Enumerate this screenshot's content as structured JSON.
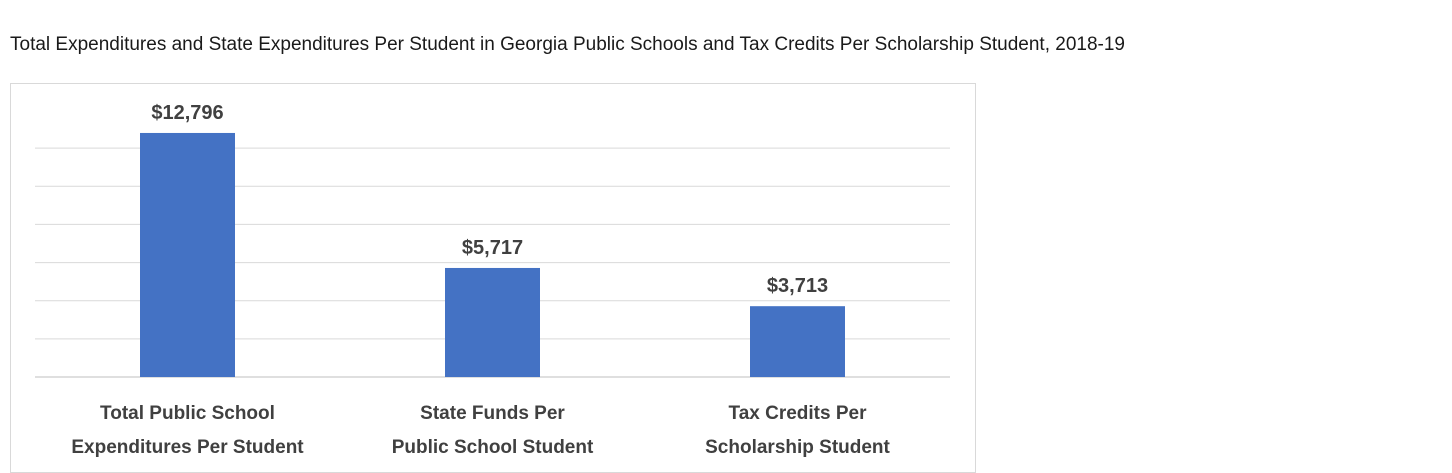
{
  "chart_data": {
    "type": "bar",
    "title": "Total Expenditures and State Expenditures Per Student in Georgia Public Schools and Tax Credits Per Scholarship Student, 2018-19",
    "categories": [
      [
        "Total Public School",
        "Expenditures Per Student"
      ],
      [
        "State Funds Per",
        "Public School Student"
      ],
      [
        "Tax Credits Per",
        "Scholarship Student"
      ]
    ],
    "values": [
      12796,
      5717,
      3713
    ],
    "value_labels": [
      "$12,796",
      "$5,717",
      "$3,713"
    ],
    "ylim": [
      0,
      14000
    ],
    "grid": true,
    "bar_color": "#4472c4",
    "grid_color": "#d9d9d9"
  }
}
